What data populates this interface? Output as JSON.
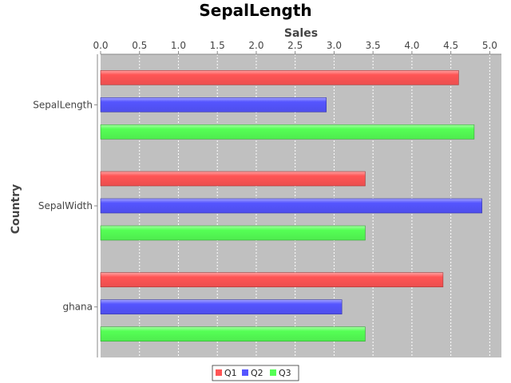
{
  "chart_data": {
    "type": "bar",
    "orientation": "horizontal",
    "title": "SepalLength",
    "xlabel": "Sales",
    "ylabel": "Country",
    "categories": [
      "SepalLength",
      "SepalWidth",
      "ghana"
    ],
    "series": [
      {
        "name": "Q1",
        "color": "#ff5555",
        "values": [
          4.6,
          3.4,
          4.4
        ]
      },
      {
        "name": "Q2",
        "color": "#5555ff",
        "values": [
          2.9,
          4.9,
          3.1
        ]
      },
      {
        "name": "Q3",
        "color": "#55ff55",
        "values": [
          4.8,
          3.4,
          3.4
        ]
      }
    ],
    "value_axis": {
      "range": [
        0,
        5.15
      ],
      "ticks": [
        "0.0",
        "0.5",
        "1.0",
        "1.5",
        "2.0",
        "2.5",
        "3.0",
        "3.5",
        "4.0",
        "4.5",
        "5.0"
      ],
      "position": "top"
    },
    "grid": true,
    "plot_background": "#c0c0c0",
    "legend_position": "bottom"
  }
}
